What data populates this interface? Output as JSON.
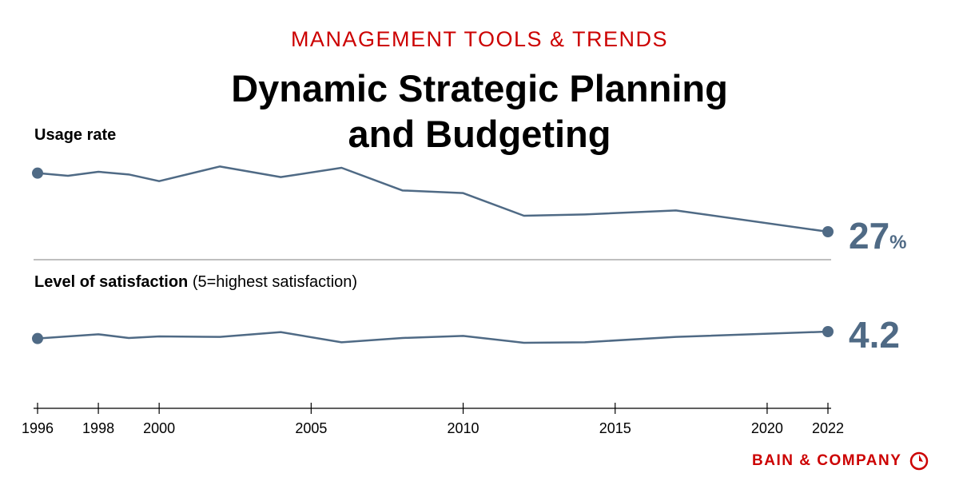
{
  "header": {
    "kicker": "MANAGEMENT TOOLS & TRENDS",
    "title_line1": "Dynamic Strategic Planning",
    "title_line2": "and Budgeting"
  },
  "colors": {
    "line": "#4f6a85",
    "brand": "#cc0000",
    "divider": "#999999"
  },
  "chart_data": [
    {
      "type": "line",
      "label": "Usage rate",
      "x": [
        1996,
        1997,
        1998,
        1999,
        2000,
        2002,
        2004,
        2006,
        2008,
        2010,
        2012,
        2014,
        2017,
        2022
      ],
      "values": [
        71,
        69,
        72,
        70,
        65,
        76,
        68,
        75,
        58,
        56,
        39,
        40,
        43,
        27
      ],
      "end_label": "27",
      "end_unit": "%",
      "grid": false
    },
    {
      "type": "line",
      "label_bold": "Level of satisfaction",
      "label_note": "(5=highest satisfaction)",
      "x": [
        1996,
        1997,
        1998,
        1999,
        2000,
        2002,
        2004,
        2006,
        2008,
        2010,
        2012,
        2014,
        2017,
        2022
      ],
      "values": [
        4.07,
        4.11,
        4.15,
        4.08,
        4.11,
        4.1,
        4.19,
        4.0,
        4.08,
        4.12,
        3.99,
        4.0,
        4.1,
        4.2
      ],
      "end_label": "4.2",
      "grid": false
    }
  ],
  "x_axis": {
    "ticks": [
      "1996",
      "1998",
      "2000",
      "2005",
      "2010",
      "2015",
      "2020",
      "2022"
    ]
  },
  "footer": {
    "logo": "BAIN & COMPANY"
  }
}
